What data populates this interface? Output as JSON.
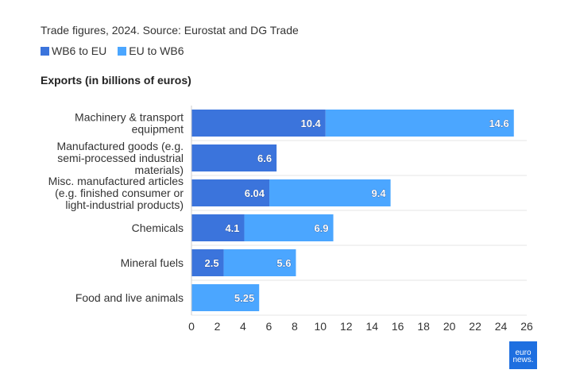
{
  "subtitle": "Trade figures, 2024. Source: Eurostat and DG Trade",
  "colors": {
    "wb6_to_eu": "#3b74dc",
    "eu_to_wb6": "#4ba6ff"
  },
  "logo_text": "euronews.",
  "chart_data": {
    "type": "bar",
    "orientation": "horizontal",
    "stacked": true,
    "title": "Exports (in billions of euros)",
    "categories": [
      [
        "Machinery & transport",
        "equipment"
      ],
      [
        "Manufactured goods (e.g.",
        "semi-processed industrial",
        "materials)"
      ],
      [
        "Misc. manufactured articles",
        "(e.g. finished consumer or",
        "light-industrial products)"
      ],
      [
        "Chemicals"
      ],
      [
        "Mineral fuels"
      ],
      [
        "Food and live animals"
      ]
    ],
    "series": [
      {
        "name": "WB6 to EU",
        "values": [
          10.4,
          6.6,
          6.04,
          4.1,
          2.5,
          null
        ],
        "labels": [
          "10.4",
          "6.6",
          "6.04",
          "4.1",
          "2.5",
          ""
        ]
      },
      {
        "name": "EU to WB6",
        "values": [
          14.6,
          null,
          9.4,
          6.9,
          5.6,
          5.25
        ],
        "labels": [
          "14.6",
          "",
          "9.4",
          "6.9",
          "5.6",
          "5.25"
        ]
      }
    ],
    "xlim": [
      0,
      26
    ],
    "xticks": [
      0,
      2,
      4,
      6,
      8,
      10,
      12,
      14,
      16,
      18,
      20,
      22,
      24,
      26
    ],
    "grid": "horizontal separators",
    "legend": "top-left"
  }
}
